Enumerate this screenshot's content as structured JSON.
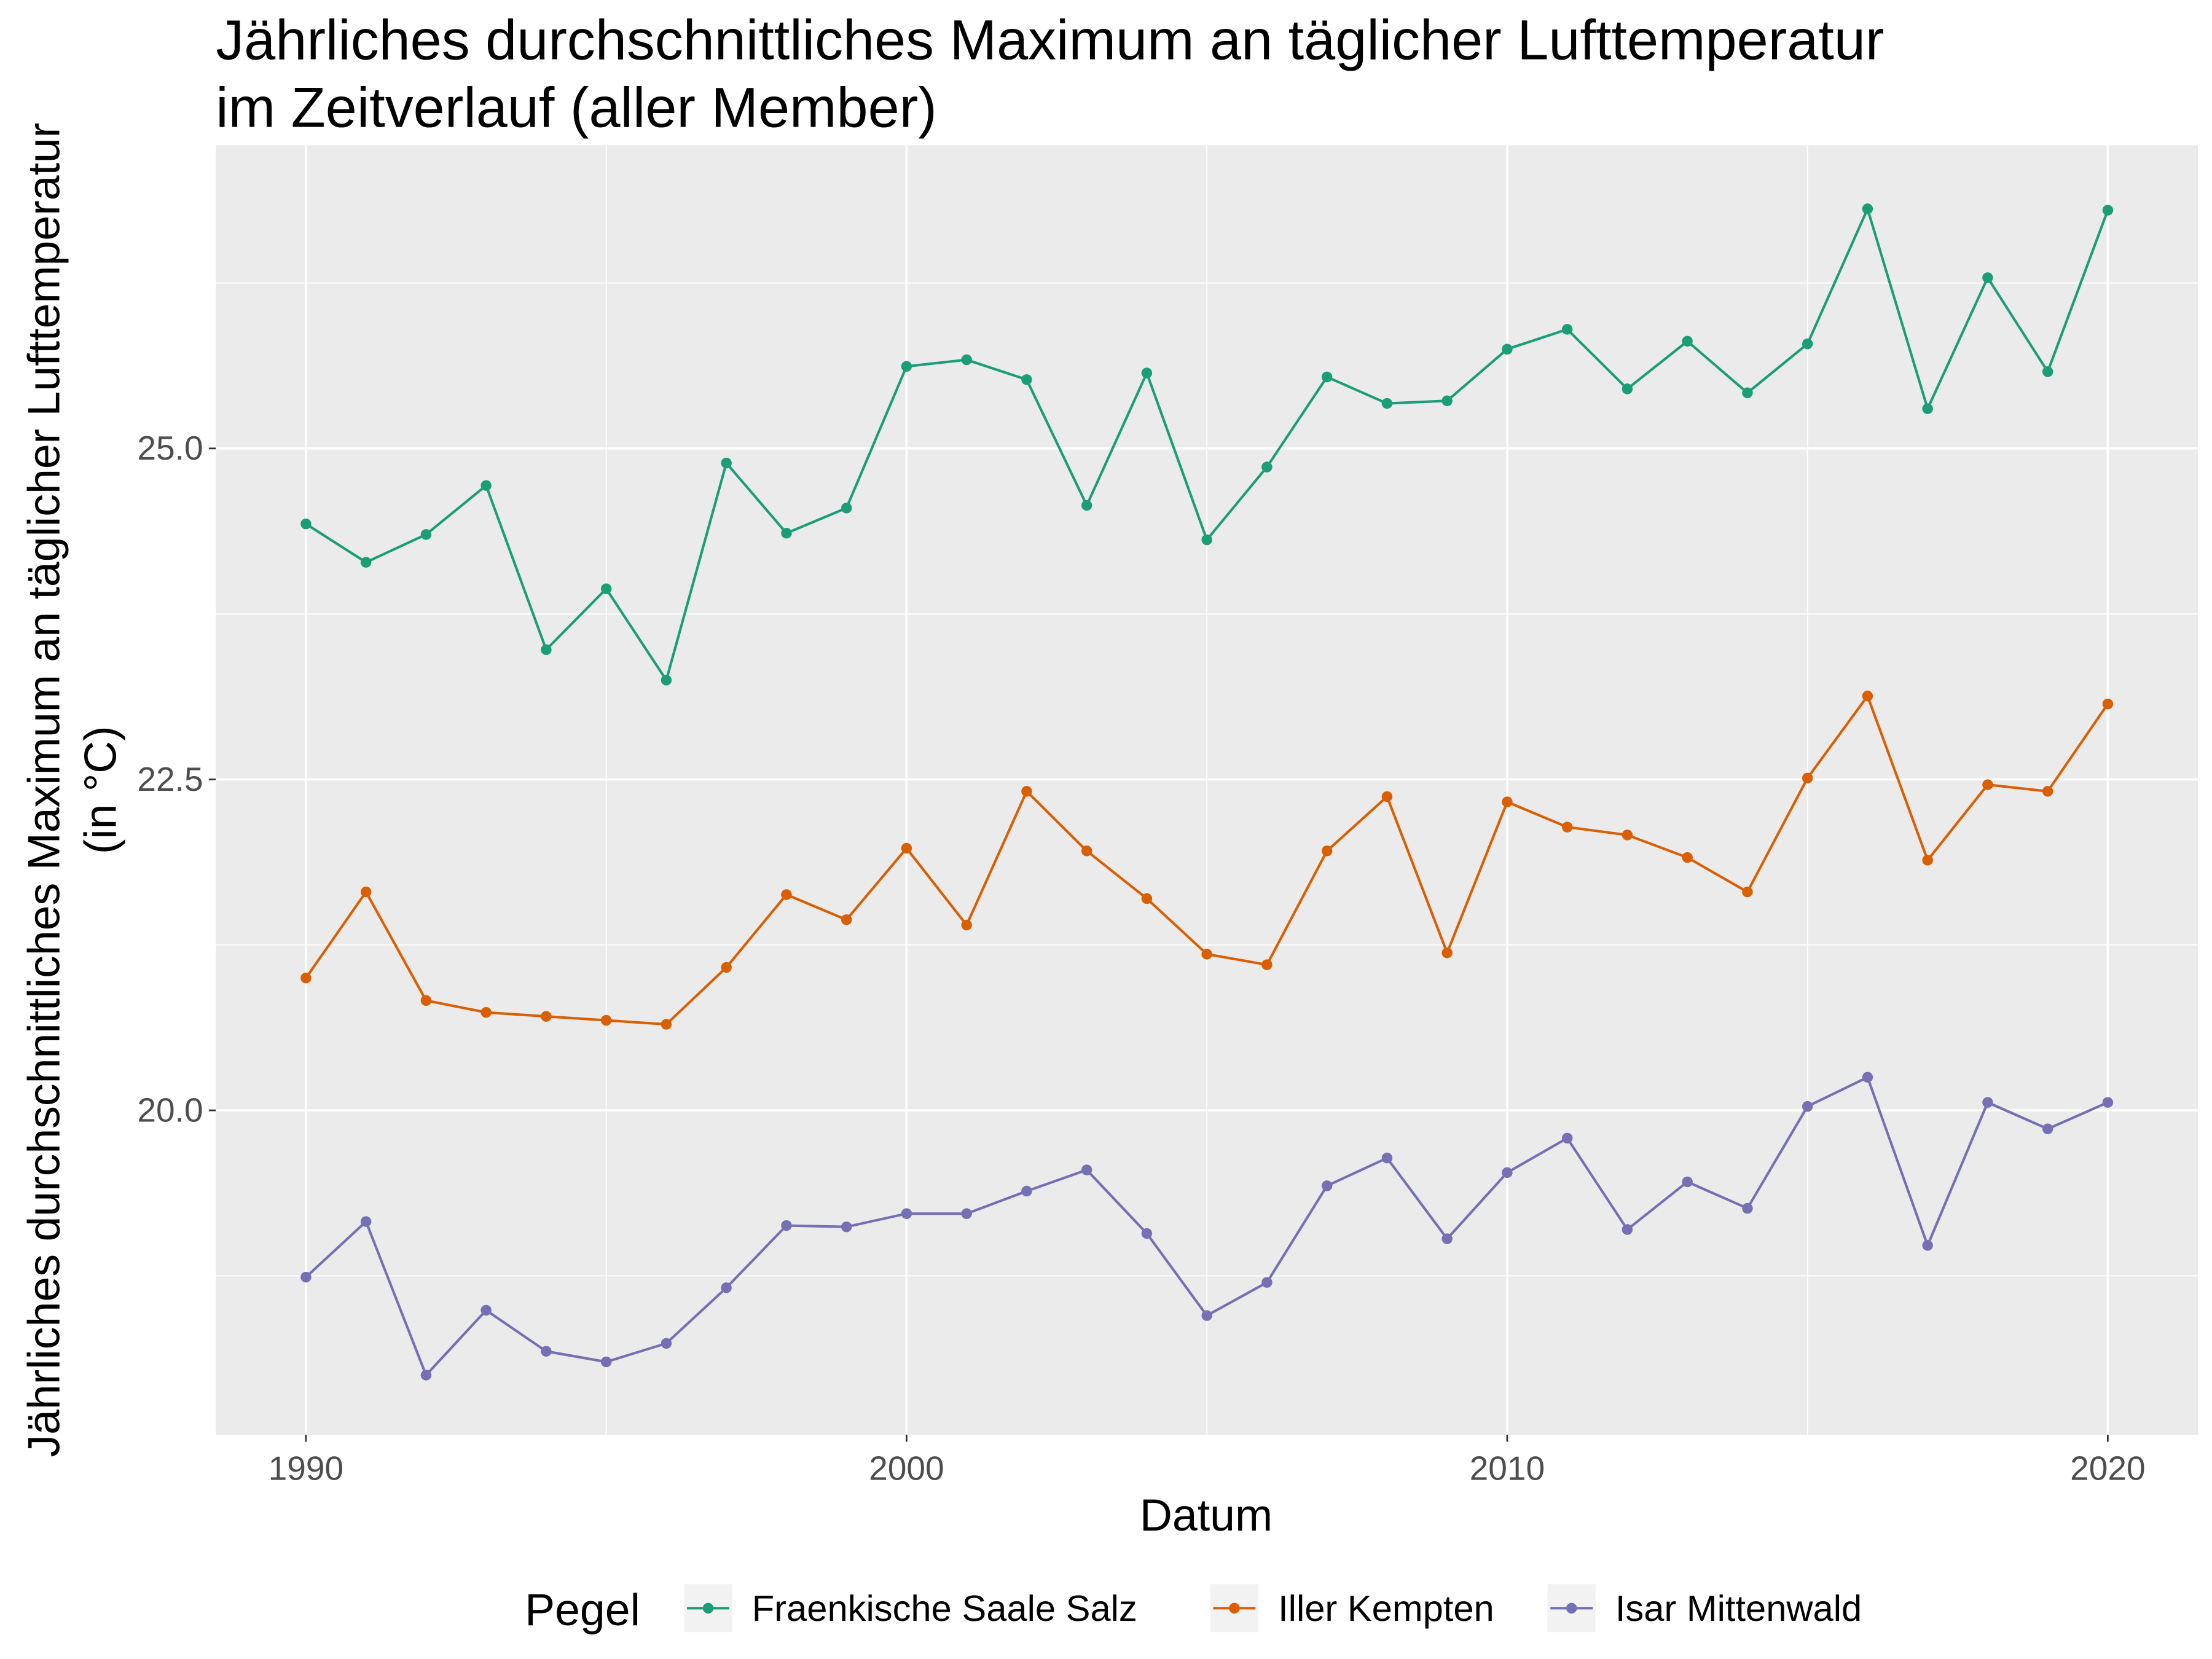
{
  "chart_data": {
    "type": "line",
    "title": [
      "Jährliches durchschnittliches Maximum an täglicher Lufttemperatur",
      "im Zeitverlauf (aller Member)"
    ],
    "x_label": "Datum",
    "y_label": [
      "Jährliches durchschnittliches Maximum an täglicher Lufttemperatur",
      "(in °C)"
    ],
    "legend_title": "Pegel",
    "legend_position": "bottom",
    "grid": true,
    "background": "#ebebeb",
    "x": [
      1990,
      1991,
      1992,
      1993,
      1994,
      1995,
      1996,
      1997,
      1998,
      1999,
      2000,
      2001,
      2002,
      2003,
      2004,
      2005,
      2006,
      2007,
      2008,
      2009,
      2010,
      2011,
      2012,
      2013,
      2014,
      2015,
      2016,
      2017,
      2018,
      2019,
      2020
    ],
    "xlim": [
      1988.5,
      2021.5
    ],
    "xticks": [
      1990,
      2000,
      2010,
      2020
    ],
    "minor_xticks": [
      1995,
      2005,
      2015
    ],
    "ylim": [
      17.55,
      27.29
    ],
    "yticks": [
      {
        "value": 20,
        "label": "20.0"
      },
      22.5,
      {
        "value": 25,
        "label": "25.0"
      }
    ],
    "minor_yticks": [
      18.75,
      21.25,
      23.75,
      26.25
    ],
    "series": [
      {
        "name": "Fraenkische Saale Salz",
        "color": "#1b9e77",
        "values": [
          24.43,
          24.14,
          24.35,
          24.72,
          23.48,
          23.94,
          23.25,
          24.89,
          24.36,
          24.55,
          25.62,
          25.67,
          25.52,
          24.57,
          25.57,
          24.31,
          24.86,
          25.54,
          25.34,
          25.36,
          25.75,
          25.9,
          25.45,
          25.81,
          25.42,
          25.79,
          26.81,
          25.3,
          26.29,
          25.58,
          26.8
        ]
      },
      {
        "name": "Iller Kempten",
        "color": "#d95f02",
        "values": [
          21.0,
          21.65,
          20.83,
          20.74,
          20.71,
          20.68,
          20.65,
          21.08,
          21.63,
          21.44,
          21.98,
          21.4,
          22.41,
          21.96,
          21.6,
          21.18,
          21.1,
          21.96,
          22.37,
          21.19,
          22.33,
          22.14,
          22.08,
          21.91,
          21.65,
          22.51,
          23.13,
          21.89,
          22.46,
          22.41,
          23.07
        ]
      },
      {
        "name": "Isar Mittenwald",
        "color": "#7570b3",
        "values": [
          18.74,
          19.16,
          18.0,
          18.49,
          18.18,
          18.1,
          18.24,
          18.66,
          19.13,
          19.12,
          19.22,
          19.22,
          19.39,
          19.55,
          19.07,
          18.45,
          18.7,
          19.43,
          19.64,
          19.03,
          19.53,
          19.79,
          19.1,
          19.46,
          19.26,
          20.03,
          20.25,
          18.98,
          20.06,
          19.86,
          20.06
        ]
      }
    ]
  }
}
